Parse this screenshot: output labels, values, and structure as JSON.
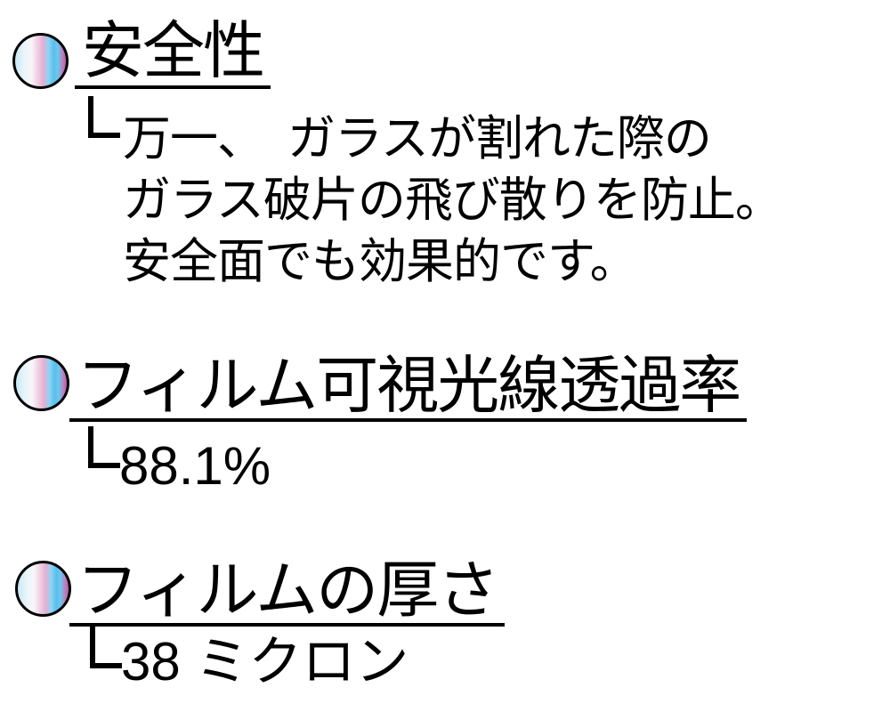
{
  "page": {
    "background": "#ffffff",
    "text_color": "#000000"
  },
  "bullet_icon": {
    "border_color": "#000000",
    "gradient_stops": [
      "#c9e8f6 0%",
      "#eaf5fa 18%",
      "#faf5f9 32%",
      "#eec9e0 46%",
      "#e3b0d3 55%",
      "#8fd3f2 66%",
      "#58bfec 76%",
      "#6ec6ee 84%",
      "#c077b6 95%",
      "#b05fa6 100%"
    ]
  },
  "sections": [
    {
      "heading": "安全性",
      "lines": [
        "万一、　ガラスが割れた際の",
        "ガラス破片の飛び散りを防止。",
        "安全面でも効果的です。"
      ]
    },
    {
      "heading": "フィルム可視光線透過率",
      "value": "88.1%"
    },
    {
      "heading": "フィルムの厚さ",
      "value": "38 ミクロン"
    }
  ]
}
